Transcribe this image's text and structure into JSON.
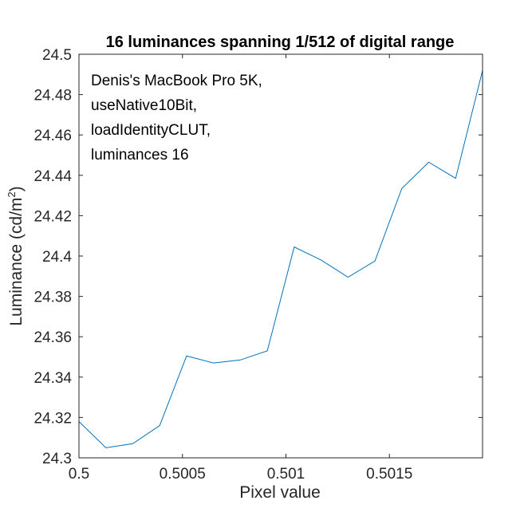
{
  "chart_data": {
    "type": "line",
    "title": "16 luminances spanning 1/512 of digital range",
    "xlabel": "Pixel value",
    "ylabel_main": "Luminance (cd/m",
    "ylabel_sup": "2",
    "ylabel_end": ")",
    "xlim": [
      0.5,
      0.50195
    ],
    "ylim": [
      24.3,
      24.5
    ],
    "xticks": [
      0.5,
      0.5005,
      0.501,
      0.5015
    ],
    "xtick_labels": [
      "0.5",
      "0.5005",
      "0.501",
      "0.5015"
    ],
    "yticks": [
      24.3,
      24.32,
      24.34,
      24.36,
      24.38,
      24.4,
      24.42,
      24.44,
      24.46,
      24.48,
      24.5
    ],
    "ytick_labels": [
      "24.3",
      "24.32",
      "24.34",
      "24.36",
      "24.38",
      "24.4",
      "24.42",
      "24.44",
      "24.46",
      "24.48",
      "24.5"
    ],
    "grid": false,
    "line_color": "#0072bd",
    "annotation": [
      "Denis's MacBook Pro 5K,",
      "useNative10Bit,",
      "loadIdentityCLUT,",
      "luminances 16"
    ],
    "series": [
      {
        "x": [
          0.5,
          0.50013,
          0.50026,
          0.50039,
          0.50052,
          0.50065,
          0.50078,
          0.50091,
          0.50104,
          0.50117,
          0.5013,
          0.50143,
          0.50156,
          0.50169,
          0.50182,
          0.50195
        ],
        "y": [
          24.318,
          24.305,
          24.307,
          24.316,
          24.3505,
          24.347,
          24.3485,
          24.353,
          24.4045,
          24.398,
          24.3895,
          24.3975,
          24.4335,
          24.4465,
          24.4385,
          24.492
        ]
      }
    ]
  }
}
